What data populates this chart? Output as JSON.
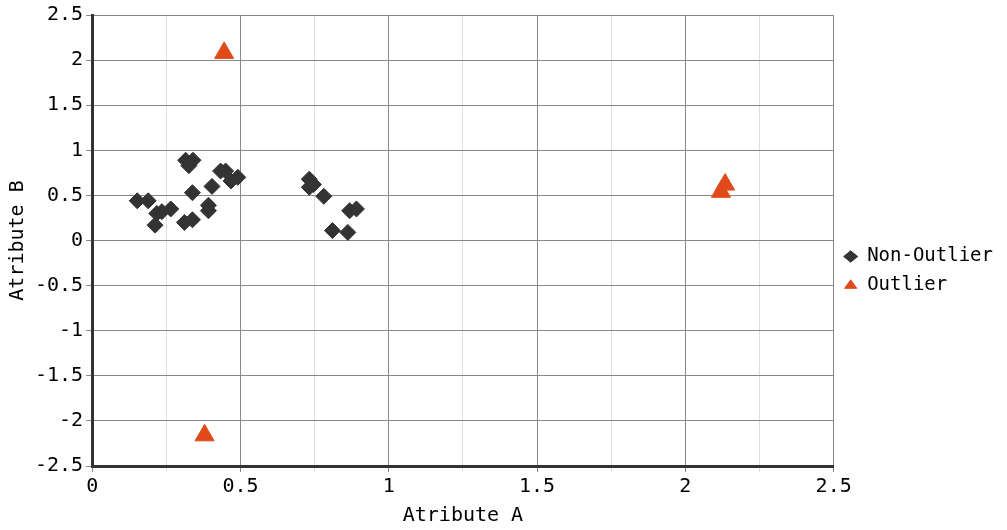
{
  "chart_data": {
    "type": "scatter",
    "xlabel": "Atribute A",
    "ylabel": "Atribute B",
    "xlim": [
      0,
      2.5
    ],
    "ylim": [
      -2.5,
      2.5
    ],
    "xticks": [
      0,
      {
        "value": 0.25,
        "label": null
      },
      0.5,
      {
        "value": 0.75,
        "label": null
      },
      1,
      {
        "value": 1.25,
        "label": null
      },
      1.5,
      {
        "value": 1.75,
        "label": null
      },
      2,
      {
        "value": 2.25,
        "label": null
      },
      2.5
    ],
    "yticks": [
      -2.5,
      -2,
      -1.5,
      -1,
      -0.5,
      0,
      0.5,
      1,
      1.5,
      2,
      2.5
    ],
    "grid": true,
    "legend": "right",
    "series": [
      {
        "name": "Non-Outlier",
        "color": "#333333",
        "marker": "diamond",
        "x": [
          0.152,
          0.189,
          0.212,
          0.218,
          0.235,
          0.265,
          0.315,
          0.34,
          0.326,
          0.338,
          0.311,
          0.338,
          0.392,
          0.392,
          0.404,
          0.433,
          0.45,
          0.468,
          0.491,
          0.732,
          0.732,
          0.746,
          0.781,
          0.81,
          0.862,
          0.868,
          0.891
        ],
        "values": [
          0.44,
          0.44,
          0.17,
          0.3,
          0.32,
          0.35,
          0.89,
          0.89,
          0.83,
          0.53,
          0.2,
          0.23,
          0.39,
          0.33,
          0.6,
          0.77,
          0.77,
          0.66,
          0.7,
          0.68,
          0.59,
          0.62,
          0.49,
          0.11,
          0.09,
          0.33,
          0.35
        ]
      },
      {
        "name": "Outlier",
        "color": "#e04a1a",
        "marker": "triangle",
        "x": [
          0.445,
          0.379,
          2.134,
          2.12
        ],
        "values": [
          2.08,
          -2.16,
          0.62,
          0.54
        ]
      }
    ]
  }
}
